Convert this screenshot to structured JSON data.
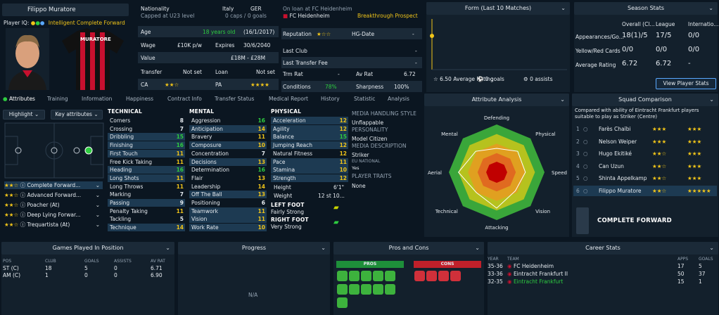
{
  "player": {
    "name": "Filippo Muratore",
    "iq_label": "Player IQ:",
    "iq_value": "Intelligent Complete Forward",
    "shirt_name": "MURATORE"
  },
  "info": {
    "nationality_label": "Nationality",
    "nat1": "Italy",
    "nat2": "GER",
    "caps_note": "Capped at U23 level",
    "caps": "0 caps / 0 goals",
    "loan_note": "On loan at FC Heidenheim",
    "loan_club": "FC Heidenheim",
    "prospect": "Breakthrough Prospect",
    "age_label": "Age",
    "age_value": "18 years old",
    "dob": "(16/1/2017)",
    "wage_label": "Wage",
    "wage": "£10K p/w",
    "expires_label": "Expires",
    "expires": "30/6/2040",
    "value_label": "Value",
    "value": "£18M - £28M",
    "transfer_label": "Transfer",
    "transfer": "Not set",
    "loan_label": "Loan",
    "loan": "Not set",
    "ca_label": "CA",
    "pa_label": "PA",
    "rep_label": "Reputation",
    "hg_label": "HG-Date",
    "hg_value": "-",
    "last_club_label": "Last Club",
    "last_club": "-",
    "ltf_label": "Last Transfer Fee",
    "ltf": "-",
    "trm_label": "Trm Rat",
    "trm": "-",
    "av_label": "Av Rat",
    "av": "6.72",
    "cond_label": "Conditions",
    "cond": "78%",
    "sharp_label": "Sharpness",
    "sharp": "100%"
  },
  "form": {
    "title": "Form (Last 10 Matches)",
    "avg_value": "6.50",
    "avg_label": "Average Rating",
    "goals": "0 goals",
    "assists": "0 assists",
    "points": [
      7.2
    ]
  },
  "season": {
    "title": "Season Stats",
    "cols": [
      "Overall (Cl...",
      "League",
      "Internatio..."
    ],
    "rows": [
      {
        "label": "Appearances/Go...",
        "v": [
          "18(1)/5",
          "17/5",
          "0/0"
        ]
      },
      {
        "label": "Yellow/Red Cards",
        "v": [
          "0/0",
          "0/0",
          "0/0"
        ]
      },
      {
        "label": "Average Rating",
        "v": [
          "6.72",
          "6.72",
          "-"
        ]
      }
    ],
    "button": "View Player Stats"
  },
  "tabs": [
    "Attributes",
    "Training",
    "Information",
    "Happiness",
    "Contract Info",
    "Transfer Status",
    "Medical Report",
    "History",
    "Statistic",
    "Analysis"
  ],
  "left": {
    "highlight": "Highlight",
    "key": "Key attributes",
    "roles": [
      {
        "name": "Complete Forward...",
        "stars": "★★☆"
      },
      {
        "name": "Advanced Forward...",
        "stars": "★★☆"
      },
      {
        "name": "Poacher (At)",
        "stars": "★★☆"
      },
      {
        "name": "Deep Lying Forwar...",
        "stars": "★★☆"
      },
      {
        "name": "Trequartista (At)",
        "stars": "★★☆"
      }
    ]
  },
  "technical": {
    "title": "TECHNICAL",
    "items": [
      [
        "Corners",
        "8"
      ],
      [
        "Crossing",
        "7"
      ],
      [
        "Dribbling",
        "15"
      ],
      [
        "Finishing",
        "16"
      ],
      [
        "First Touch",
        "11"
      ],
      [
        "Free Kick Taking",
        "11"
      ],
      [
        "Heading",
        "16"
      ],
      [
        "Long Shots",
        "11"
      ],
      [
        "Long Throws",
        "11"
      ],
      [
        "Marking",
        "7"
      ],
      [
        "Passing",
        "9"
      ],
      [
        "Penalty Taking",
        "11"
      ],
      [
        "Tackling",
        "5"
      ],
      [
        "Technique",
        "14"
      ]
    ]
  },
  "mental": {
    "title": "MENTAL",
    "items": [
      [
        "Aggression",
        "16"
      ],
      [
        "Anticipation",
        "14"
      ],
      [
        "Bravery",
        "11"
      ],
      [
        "Composure",
        "10"
      ],
      [
        "Concentration",
        "7"
      ],
      [
        "Decisions",
        "13"
      ],
      [
        "Determination",
        "16"
      ],
      [
        "Flair",
        "13"
      ],
      [
        "Leadership",
        "14"
      ],
      [
        "Off The Ball",
        "13"
      ],
      [
        "Positioning",
        "6"
      ],
      [
        "Teamwork",
        "11"
      ],
      [
        "Vision",
        "11"
      ],
      [
        "Work Rate",
        "10"
      ]
    ]
  },
  "physical": {
    "title": "PHYSICAL",
    "items": [
      [
        "Acceleration",
        "12"
      ],
      [
        "Agility",
        "12"
      ],
      [
        "Balance",
        "15"
      ],
      [
        "Jumping Reach",
        "12"
      ],
      [
        "Natural Fitness",
        "12"
      ],
      [
        "Pace",
        "11"
      ],
      [
        "Stamina",
        "10"
      ],
      [
        "Strength",
        "12"
      ]
    ],
    "height_label": "Height",
    "height": "6'1\"",
    "weight_label": "Weight",
    "weight": "12 st 10...",
    "lf_label": "LEFT FOOT",
    "lf": "Fairly Strong",
    "rf_label": "RIGHT FOOT",
    "rf": "Very Strong"
  },
  "media": {
    "style_label": "MEDIA HANDLING STYLE",
    "style": "Unflappable",
    "pers_label": "PERSONALITY",
    "pers": "Model Citizen",
    "desc_label": "MEDIA DESCRIPTION",
    "desc": "Striker",
    "eu_label": "EU NATIONAL",
    "eu": "Yes",
    "traits_label": "PLAYER TRAITS",
    "traits": "None"
  },
  "analysis": {
    "title": "Attribute Analysis",
    "labels": [
      "Defending",
      "Physical",
      "Speed",
      "Vision",
      "Attacking",
      "Technical",
      "Aerial",
      "Mental"
    ],
    "values": [
      0.5,
      0.62,
      0.6,
      0.55,
      0.75,
      0.6,
      0.8,
      0.62
    ]
  },
  "squad": {
    "title": "Squad Comparison",
    "note": "Compared with ability of Eintracht Frankfurt players suitable to play as Striker (Centre)",
    "rows": [
      {
        "n": "1",
        "name": "Farès Chaïbi",
        "a": "★★★",
        "b": "★★★"
      },
      {
        "n": "2",
        "name": "Nelson Weiper",
        "a": "★★★",
        "b": "★★★"
      },
      {
        "n": "3",
        "name": "Hugo Ekitiké",
        "a": "★★☆",
        "b": "★★★"
      },
      {
        "n": "4",
        "name": "Can Uzun",
        "a": "★★☆",
        "b": "★★★"
      },
      {
        "n": "5",
        "name": "Shinta Appelkamp",
        "a": "★★☆",
        "b": "★★★"
      },
      {
        "n": "6",
        "name": "Filippo Muratore",
        "a": "★★☆",
        "b": "★★★★★"
      }
    ],
    "role": "COMPLETE FORWARD"
  },
  "games": {
    "title": "Games Played In Position",
    "cols": [
      "POS",
      "CLUB",
      "GOALS",
      "ASSISTS",
      "AV RAT"
    ],
    "rows": [
      [
        "ST (C)",
        "18",
        "5",
        "0",
        "6.71"
      ],
      [
        "AM (C)",
        "1",
        "0",
        "0",
        "6.90"
      ]
    ]
  },
  "progress": {
    "title": "Progress",
    "na": "N/A"
  },
  "proscons": {
    "title": "Pros and Cons",
    "pros": "PROS",
    "cons": "CONS"
  },
  "career": {
    "title": "Career Stats",
    "cols": [
      "YEAR",
      "TEAM",
      "APPS",
      "GOALS"
    ],
    "rows": [
      [
        "35-36",
        "FC Heidenheim",
        "17",
        "5"
      ],
      [
        "33-36",
        "Eintracht Frankfurt II",
        "50",
        "37"
      ],
      [
        "32-35",
        "Eintracht Frankfurt",
        "15",
        "1"
      ]
    ]
  }
}
